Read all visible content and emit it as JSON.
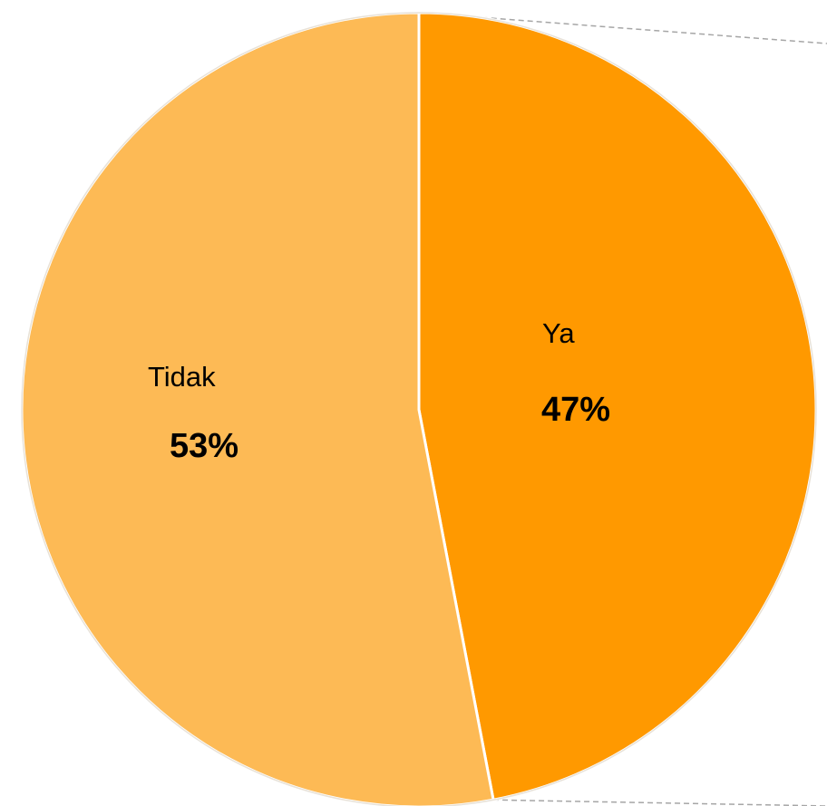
{
  "chart_data": {
    "type": "pie",
    "title": "",
    "start_angle_deg": 0,
    "direction": "clockwise",
    "slices": [
      {
        "label": "Ya",
        "value": 47,
        "value_label": "47%",
        "color": "#FF9900"
      },
      {
        "label": "Tidak",
        "value": 53,
        "value_label": "53%",
        "color": "#FDBA55"
      }
    ],
    "slice_border_color": "#ffffff",
    "edge_color": "#e8e2d8",
    "leader_line_color": "#a6a6a6"
  }
}
